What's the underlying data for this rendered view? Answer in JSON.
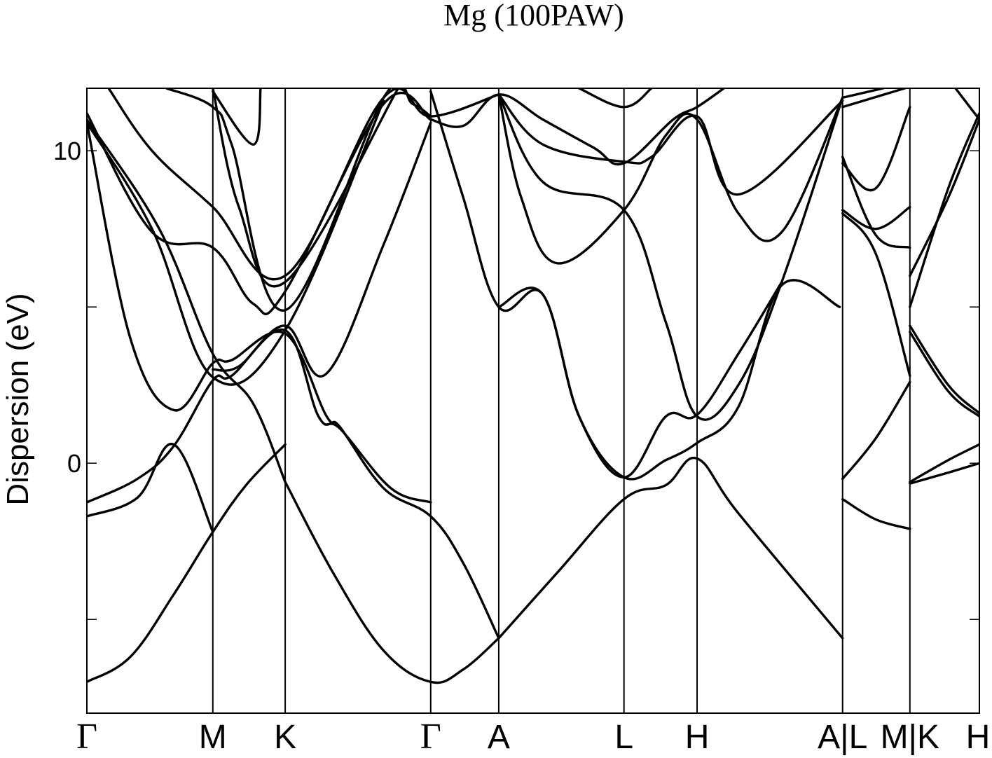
{
  "chart_data": {
    "type": "line",
    "title": "Mg (100PAW)",
    "ylabel": "Dispersion (eV)",
    "xlabel": "",
    "ylim": [
      -8.0,
      12.0
    ],
    "yticks": [
      {
        "value": 10,
        "label": "10"
      },
      {
        "value": 5,
        "label": ""
      },
      {
        "value": 0,
        "label": "0"
      },
      {
        "value": -5,
        "label": ""
      }
    ],
    "xlim": [
      0,
      12.33
    ],
    "kpoints": [
      {
        "pos": 0.0,
        "label": "Γ"
      },
      {
        "pos": 1.74,
        "label": "M"
      },
      {
        "pos": 2.74,
        "label": "K"
      },
      {
        "pos": 4.75,
        "label": "Γ"
      },
      {
        "pos": 5.69,
        "label": "A"
      },
      {
        "pos": 7.42,
        "label": "L"
      },
      {
        "pos": 8.43,
        "label": "H"
      },
      {
        "pos": 10.44,
        "label": "A|L"
      },
      {
        "pos": 11.37,
        "label": "M|K"
      },
      {
        "pos": 12.33,
        "label": "H"
      }
    ],
    "grid": false,
    "legend": "none",
    "line_color": "#000000",
    "series": [
      {
        "points": [
          [
            0,
            -7.0
          ],
          [
            0.6,
            -6.2
          ],
          [
            1.2,
            -4.2
          ],
          [
            1.74,
            -2.2
          ],
          [
            2.2,
            -0.7
          ],
          [
            2.74,
            0.6
          ]
        ]
      },
      {
        "points": [
          [
            2.74,
            -0.6
          ],
          [
            3.4,
            -3.5
          ],
          [
            4.1,
            -6.0
          ],
          [
            4.75,
            -7.0
          ],
          [
            5.2,
            -6.6
          ],
          [
            5.69,
            -5.6
          ]
        ]
      },
      {
        "points": [
          [
            0,
            -1.7
          ],
          [
            0.7,
            -1.1
          ],
          [
            1.2,
            0.6
          ],
          [
            1.74,
            -2.2
          ]
        ]
      },
      {
        "points": [
          [
            0,
            -1.25
          ],
          [
            0.7,
            -0.5
          ],
          [
            1.2,
            0.55
          ],
          [
            1.74,
            2.65
          ],
          [
            2.0,
            2.8
          ],
          [
            2.74,
            4.25
          ],
          [
            3.2,
            1.5
          ],
          [
            3.5,
            1.1
          ],
          [
            4.2,
            -0.8
          ],
          [
            4.75,
            -1.25
          ]
        ]
      },
      {
        "points": [
          [
            0,
            10.9
          ],
          [
            0.6,
            4.0
          ],
          [
            1.2,
            1.7
          ],
          [
            1.74,
            3.2
          ],
          [
            2.0,
            3.3
          ],
          [
            2.74,
            4.15
          ],
          [
            3.3,
            1.55
          ],
          [
            3.5,
            1.15
          ],
          [
            4.1,
            -0.8
          ],
          [
            4.75,
            -1.7
          ],
          [
            5.2,
            -3.2
          ],
          [
            5.69,
            -5.6
          ]
        ]
      },
      {
        "points": [
          [
            1.74,
            3.0
          ],
          [
            2.1,
            3.1
          ],
          [
            2.74,
            4.4
          ],
          [
            3.3,
            2.85
          ],
          [
            4.1,
            7.0
          ],
          [
            4.75,
            10.9
          ]
        ]
      },
      {
        "points": [
          [
            0,
            11.0
          ],
          [
            1.0,
            7.5
          ],
          [
            1.74,
            3.5
          ],
          [
            2.3,
            1.9
          ],
          [
            2.74,
            -0.6
          ]
        ]
      },
      {
        "points": [
          [
            0,
            11.2
          ],
          [
            0.9,
            7.4
          ],
          [
            1.74,
            6.9
          ],
          [
            2.3,
            5.1
          ],
          [
            2.74,
            5.5
          ],
          [
            4.1,
            11.5
          ],
          [
            4.75,
            11.0
          ]
        ]
      },
      {
        "points": [
          [
            0,
            10.9
          ],
          [
            0.9,
            7.5
          ],
          [
            1.74,
            2.75
          ],
          [
            2.74,
            4.25
          ],
          [
            4.1,
            11.6
          ]
        ]
      },
      {
        "points": [
          [
            0.3,
            12.0
          ],
          [
            0.9,
            10.0
          ],
          [
            1.74,
            8.2
          ],
          [
            2.74,
            6.0
          ],
          [
            4.1,
            11.7
          ],
          [
            4.75,
            11.1
          ],
          [
            5.69,
            11.8
          ]
        ]
      },
      {
        "points": [
          [
            1.1,
            12.0
          ],
          [
            1.74,
            11.4
          ],
          [
            2.0,
            10.2
          ],
          [
            2.74,
            4.9
          ],
          [
            4.1,
            11.7
          ],
          [
            4.5,
            11.5
          ],
          [
            4.75,
            11.1
          ]
        ]
      },
      {
        "points": [
          [
            1.74,
            12.0
          ],
          [
            2.1,
            8.2
          ],
          [
            2.74,
            5.8
          ],
          [
            4.3,
            12.0
          ]
        ]
      },
      {
        "points": [
          [
            1.74,
            11.9
          ],
          [
            2.3,
            10.2
          ],
          [
            2.4,
            12.0
          ]
        ]
      },
      {
        "points": [
          [
            4.75,
            11.9
          ],
          [
            5.2,
            8.5
          ],
          [
            5.69,
            5.0
          ],
          [
            6.3,
            5.4
          ],
          [
            6.8,
            1.5
          ],
          [
            7.42,
            -0.45
          ],
          [
            8.0,
            0.1
          ],
          [
            8.43,
            0.65
          ],
          [
            9.0,
            1.8
          ],
          [
            9.6,
            5.7
          ],
          [
            10.4,
            5.0
          ]
        ]
      },
      {
        "points": [
          [
            4.75,
            11.0
          ],
          [
            5.2,
            10.8
          ],
          [
            5.69,
            11.8
          ],
          [
            6.3,
            11.0
          ],
          [
            7.0,
            10.1
          ],
          [
            7.42,
            9.6
          ],
          [
            8.1,
            11.0
          ],
          [
            8.43,
            11.4
          ],
          [
            8.8,
            12.0
          ]
        ]
      },
      {
        "points": [
          [
            5.69,
            11.8
          ],
          [
            6.0,
            8.5
          ],
          [
            6.5,
            6.4
          ],
          [
            7.42,
            8.1
          ],
          [
            8.0,
            10.5
          ],
          [
            8.43,
            11.0
          ],
          [
            9.0,
            8.0
          ],
          [
            9.6,
            7.4
          ],
          [
            10.44,
            11.7
          ]
        ]
      },
      {
        "points": [
          [
            5.69,
            11.8
          ],
          [
            6.3,
            9.0
          ],
          [
            7.42,
            8.1
          ],
          [
            8.0,
            4.5
          ],
          [
            8.43,
            1.5
          ],
          [
            9.0,
            2.5
          ],
          [
            9.6,
            5.8
          ],
          [
            10.44,
            11.7
          ]
        ]
      },
      {
        "points": [
          [
            5.69,
            11.8
          ],
          [
            6.3,
            10.2
          ],
          [
            7.42,
            9.65
          ],
          [
            7.8,
            9.8
          ],
          [
            8.43,
            11.1
          ],
          [
            9.0,
            8.6
          ],
          [
            10.44,
            11.6
          ]
        ]
      },
      {
        "points": [
          [
            5.69,
            -5.6
          ],
          [
            6.5,
            -3.5
          ],
          [
            7.42,
            -1.15
          ],
          [
            8.0,
            -0.7
          ],
          [
            8.43,
            0.15
          ],
          [
            9.0,
            -1.6
          ],
          [
            10.44,
            -5.6
          ]
        ]
      },
      {
        "points": [
          [
            5.69,
            5.0
          ],
          [
            6.3,
            5.4
          ],
          [
            6.8,
            1.5
          ],
          [
            7.42,
            -0.45
          ],
          [
            8.0,
            1.5
          ],
          [
            8.43,
            1.55
          ],
          [
            9.0,
            3.5
          ],
          [
            9.6,
            5.8
          ]
        ]
      },
      {
        "points": [
          [
            6.8,
            12.0
          ],
          [
            7.42,
            11.4
          ],
          [
            7.8,
            12.0
          ]
        ]
      },
      {
        "points": [
          [
            10.44,
            -1.15
          ],
          [
            10.9,
            -1.8
          ],
          [
            11.37,
            -2.1
          ]
        ]
      },
      {
        "points": [
          [
            10.44,
            -0.5
          ],
          [
            10.9,
            0.8
          ],
          [
            11.37,
            2.6
          ]
        ]
      },
      {
        "points": [
          [
            10.44,
            8.0
          ],
          [
            10.9,
            6.7
          ],
          [
            11.37,
            2.8
          ]
        ]
      },
      {
        "points": [
          [
            10.44,
            8.1
          ],
          [
            10.9,
            7.5
          ],
          [
            11.37,
            8.2
          ]
        ]
      },
      {
        "points": [
          [
            10.44,
            9.8
          ],
          [
            10.9,
            7.3
          ],
          [
            11.37,
            6.9
          ]
        ]
      },
      {
        "points": [
          [
            10.44,
            9.6
          ],
          [
            10.9,
            8.8
          ],
          [
            11.37,
            11.4
          ]
        ]
      },
      {
        "points": [
          [
            10.44,
            11.7
          ],
          [
            11.0,
            12.0
          ]
        ]
      },
      {
        "points": [
          [
            10.44,
            11.4
          ],
          [
            11.3,
            12.0
          ]
        ]
      },
      {
        "points": [
          [
            11.37,
            -0.65
          ],
          [
            11.9,
            -0.3
          ],
          [
            12.33,
            0.0
          ]
        ]
      },
      {
        "points": [
          [
            11.37,
            -0.6
          ],
          [
            11.9,
            0.1
          ],
          [
            12.33,
            0.6
          ]
        ]
      },
      {
        "points": [
          [
            11.37,
            4.4
          ],
          [
            11.9,
            2.5
          ],
          [
            12.33,
            1.6
          ]
        ]
      },
      {
        "points": [
          [
            11.37,
            4.2
          ],
          [
            11.9,
            2.3
          ],
          [
            12.33,
            1.5
          ]
        ]
      },
      {
        "points": [
          [
            11.37,
            6.0
          ],
          [
            11.9,
            8.5
          ],
          [
            12.33,
            11.0
          ]
        ]
      },
      {
        "points": [
          [
            11.37,
            5.0
          ],
          [
            11.9,
            8.8
          ],
          [
            12.33,
            11.2
          ]
        ]
      },
      {
        "points": [
          [
            12.0,
            12.0
          ],
          [
            12.33,
            11.0
          ]
        ]
      }
    ]
  }
}
